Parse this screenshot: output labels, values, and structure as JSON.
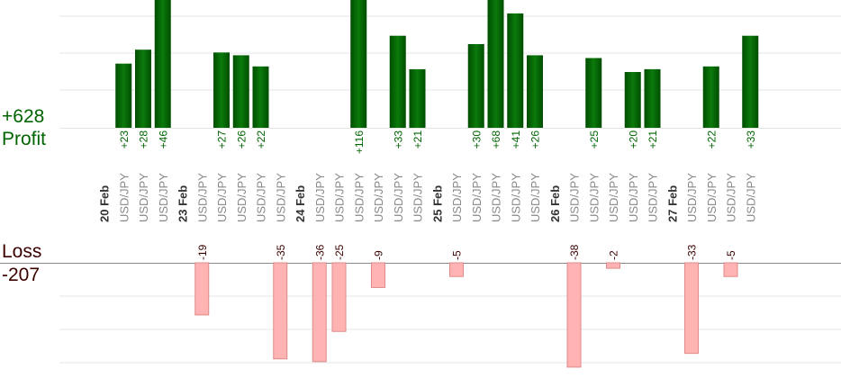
{
  "summary": {
    "profit_total": "+628",
    "profit_label": "Profit",
    "loss_label": "Loss",
    "loss_total": "-207"
  },
  "colors": {
    "profit_bar_dark": "#004d00",
    "profit_bar_light": "#0b7a0b",
    "profit_text": "#006400",
    "loss_bar": "#ffb3b3",
    "loss_bar_border": "#e08a8a",
    "loss_text": "#3a0000",
    "date_text": "#333333",
    "pair_text": "#888888",
    "grid": "#e5e5e5",
    "baseline": "#888888"
  },
  "chart_data": {
    "type": "bar",
    "subtype": "profit-loss trade bars",
    "profit_axis_range": [
      0,
      46
    ],
    "loss_axis_range": [
      -36,
      0
    ],
    "categories": [
      {
        "label": "20 Feb",
        "kind": "date"
      },
      {
        "label": "USD/JPY",
        "kind": "trade",
        "value": 23
      },
      {
        "label": "USD/JPY",
        "kind": "trade",
        "value": 28
      },
      {
        "label": "USD/JPY",
        "kind": "trade",
        "value": 46
      },
      {
        "label": "23 Feb",
        "kind": "date"
      },
      {
        "label": "USD/JPY",
        "kind": "trade",
        "value": -19
      },
      {
        "label": "USD/JPY",
        "kind": "trade",
        "value": 27
      },
      {
        "label": "USD/JPY",
        "kind": "trade",
        "value": 26
      },
      {
        "label": "USD/JPY",
        "kind": "trade",
        "value": 22
      },
      {
        "label": "USD/JPY",
        "kind": "trade",
        "value": -35
      },
      {
        "label": "24 Feb",
        "kind": "date"
      },
      {
        "label": "USD/JPY",
        "kind": "trade",
        "value": -36
      },
      {
        "label": "USD/JPY",
        "kind": "trade",
        "value": -25
      },
      {
        "label": "USD/JPY",
        "kind": "trade",
        "value": 116
      },
      {
        "label": "USD/JPY",
        "kind": "trade",
        "value": -9
      },
      {
        "label": "USD/JPY",
        "kind": "trade",
        "value": 33
      },
      {
        "label": "USD/JPY",
        "kind": "trade",
        "value": 21
      },
      {
        "label": "25 Feb",
        "kind": "date"
      },
      {
        "label": "USD/JPY",
        "kind": "trade",
        "value": -5
      },
      {
        "label": "USD/JPY",
        "kind": "trade",
        "value": 30
      },
      {
        "label": "USD/JPY",
        "kind": "trade",
        "value": 68
      },
      {
        "label": "USD/JPY",
        "kind": "trade",
        "value": 41
      },
      {
        "label": "USD/JPY",
        "kind": "trade",
        "value": 26
      },
      {
        "label": "26 Feb",
        "kind": "date"
      },
      {
        "label": "USD/JPY",
        "kind": "trade",
        "value": -38
      },
      {
        "label": "USD/JPY",
        "kind": "trade",
        "value": 25
      },
      {
        "label": "USD/JPY",
        "kind": "trade",
        "value": -2
      },
      {
        "label": "USD/JPY",
        "kind": "trade",
        "value": 20
      },
      {
        "label": "USD/JPY",
        "kind": "trade",
        "value": 21
      },
      {
        "label": "27 Feb",
        "kind": "date"
      },
      {
        "label": "USD/JPY",
        "kind": "trade",
        "value": -33
      },
      {
        "label": "USD/JPY",
        "kind": "trade",
        "value": 22
      },
      {
        "label": "USD/JPY",
        "kind": "trade",
        "value": -5
      },
      {
        "label": "USD/JPY",
        "kind": "trade",
        "value": 33
      }
    ]
  }
}
